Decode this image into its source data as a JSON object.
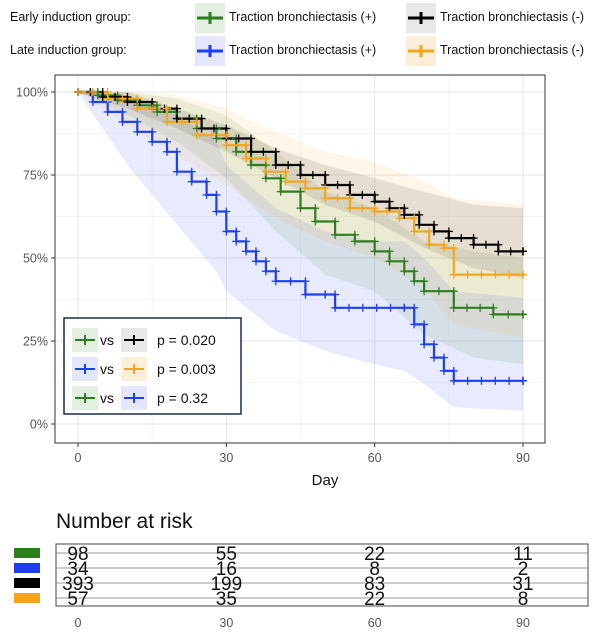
{
  "legend": {
    "early_label": "Early induction group:",
    "late_label": "Late induction group:",
    "tb_pos": "Traction bronchiectasis (+)",
    "tb_neg": "Traction bronchiectasis (-)"
  },
  "pvalues": {
    "vs": "vs",
    "rows": [
      {
        "a": "early_pos",
        "b": "early_neg",
        "p": "p = 0.020"
      },
      {
        "a": "late_pos",
        "b": "late_neg",
        "p": "p = 0.003"
      },
      {
        "a": "early_pos",
        "b": "late_pos",
        "p": "p = 0.32"
      }
    ]
  },
  "risk_table": {
    "title": "Number at risk",
    "times": [
      "0",
      "30",
      "60",
      "90"
    ],
    "rows": [
      {
        "series": "early_pos",
        "values": [
          "98",
          "55",
          "22",
          "11"
        ]
      },
      {
        "series": "late_pos",
        "values": [
          "34",
          "16",
          "8",
          "2"
        ]
      },
      {
        "series": "early_neg",
        "values": [
          "393",
          "199",
          "83",
          "31"
        ]
      },
      {
        "series": "late_neg",
        "values": [
          "57",
          "35",
          "22",
          "8"
        ]
      }
    ]
  },
  "chart_data": {
    "type": "line",
    "xlabel": "Day",
    "ylabel": "",
    "xlim": [
      0,
      90
    ],
    "ylim": [
      0,
      1
    ],
    "x_ticks": [
      0,
      30,
      60,
      90
    ],
    "x_tick_labels": [
      "0",
      "30",
      "60",
      "90"
    ],
    "y_ticks": [
      0,
      0.25,
      0.5,
      0.75,
      1.0
    ],
    "y_tick_labels": [
      "0%",
      "25%",
      "50%",
      "75%",
      "100%"
    ],
    "grid": true,
    "colors": {
      "early_pos": "#2e7d1f",
      "late_pos": "#1e3ff0",
      "early_neg": "#000000",
      "late_neg": "#f2a51f"
    },
    "series": [
      {
        "key": "early_pos",
        "color": "#2e7d1f",
        "points": [
          [
            0,
            1.0
          ],
          [
            4,
            0.99
          ],
          [
            8,
            0.975
          ],
          [
            12,
            0.96
          ],
          [
            16,
            0.94
          ],
          [
            20,
            0.92
          ],
          [
            24,
            0.89
          ],
          [
            28,
            0.86
          ],
          [
            32,
            0.82
          ],
          [
            35,
            0.78
          ],
          [
            38,
            0.74
          ],
          [
            41,
            0.7
          ],
          [
            45,
            0.65
          ],
          [
            48,
            0.61
          ],
          [
            52,
            0.57
          ],
          [
            56,
            0.55
          ],
          [
            60,
            0.52
          ],
          [
            63,
            0.49
          ],
          [
            66,
            0.46
          ],
          [
            68,
            0.43
          ],
          [
            70,
            0.4
          ],
          [
            76,
            0.35
          ],
          [
            84,
            0.33
          ],
          [
            90,
            0.33
          ]
        ],
        "band": [
          [
            0,
            1.0,
            1.0
          ],
          [
            10,
            1.0,
            0.93
          ],
          [
            20,
            0.98,
            0.85
          ],
          [
            30,
            0.93,
            0.74
          ],
          [
            40,
            0.82,
            0.58
          ],
          [
            50,
            0.7,
            0.45
          ],
          [
            60,
            0.65,
            0.4
          ],
          [
            70,
            0.55,
            0.27
          ],
          [
            80,
            0.52,
            0.2
          ],
          [
            90,
            0.5,
            0.18
          ]
        ]
      },
      {
        "key": "late_pos",
        "color": "#1e3ff0",
        "points": [
          [
            0,
            1.0
          ],
          [
            3,
            0.97
          ],
          [
            6,
            0.94
          ],
          [
            9,
            0.91
          ],
          [
            12,
            0.88
          ],
          [
            15,
            0.85
          ],
          [
            18,
            0.82
          ],
          [
            20,
            0.76
          ],
          [
            23,
            0.73
          ],
          [
            26,
            0.69
          ],
          [
            28,
            0.64
          ],
          [
            30,
            0.58
          ],
          [
            32,
            0.55
          ],
          [
            34,
            0.52
          ],
          [
            36,
            0.49
          ],
          [
            38,
            0.46
          ],
          [
            40,
            0.43
          ],
          [
            46,
            0.39
          ],
          [
            50,
            0.39
          ],
          [
            52,
            0.35
          ],
          [
            66,
            0.35
          ],
          [
            68,
            0.3
          ],
          [
            70,
            0.24
          ],
          [
            72,
            0.2
          ],
          [
            74,
            0.16
          ],
          [
            76,
            0.13
          ],
          [
            90,
            0.13
          ]
        ],
        "band": [
          [
            0,
            1.0,
            1.0
          ],
          [
            10,
            0.99,
            0.78
          ],
          [
            20,
            0.93,
            0.6
          ],
          [
            28,
            0.85,
            0.46
          ],
          [
            30,
            0.78,
            0.4
          ],
          [
            40,
            0.65,
            0.28
          ],
          [
            50,
            0.58,
            0.22
          ],
          [
            60,
            0.55,
            0.18
          ],
          [
            66,
            0.55,
            0.16
          ],
          [
            70,
            0.5,
            0.12
          ],
          [
            76,
            0.4,
            0.05
          ],
          [
            90,
            0.38,
            0.04
          ]
        ]
      },
      {
        "key": "early_neg",
        "color": "#000000",
        "points": [
          [
            0,
            1.0
          ],
          [
            5,
            0.985
          ],
          [
            10,
            0.97
          ],
          [
            15,
            0.95
          ],
          [
            20,
            0.92
          ],
          [
            25,
            0.89
          ],
          [
            30,
            0.86
          ],
          [
            35,
            0.82
          ],
          [
            40,
            0.78
          ],
          [
            45,
            0.75
          ],
          [
            50,
            0.72
          ],
          [
            55,
            0.69
          ],
          [
            60,
            0.67
          ],
          [
            63,
            0.65
          ],
          [
            66,
            0.63
          ],
          [
            69,
            0.6
          ],
          [
            72,
            0.58
          ],
          [
            75,
            0.56
          ],
          [
            80,
            0.54
          ],
          [
            85,
            0.52
          ],
          [
            90,
            0.52
          ]
        ],
        "band": [
          [
            0,
            1.0,
            1.0
          ],
          [
            10,
            1.0,
            0.95
          ],
          [
            20,
            0.95,
            0.89
          ],
          [
            30,
            0.9,
            0.82
          ],
          [
            40,
            0.83,
            0.74
          ],
          [
            50,
            0.78,
            0.66
          ],
          [
            60,
            0.74,
            0.61
          ],
          [
            70,
            0.7,
            0.53
          ],
          [
            80,
            0.66,
            0.47
          ],
          [
            90,
            0.65,
            0.44
          ]
        ]
      },
      {
        "key": "late_neg",
        "color": "#f2a51f",
        "points": [
          [
            0,
            1.0
          ],
          [
            6,
            0.98
          ],
          [
            12,
            0.95
          ],
          [
            18,
            0.91
          ],
          [
            24,
            0.87
          ],
          [
            30,
            0.84
          ],
          [
            34,
            0.8
          ],
          [
            38,
            0.76
          ],
          [
            42,
            0.73
          ],
          [
            46,
            0.71
          ],
          [
            50,
            0.68
          ],
          [
            55,
            0.65
          ],
          [
            60,
            0.64
          ],
          [
            65,
            0.62
          ],
          [
            68,
            0.58
          ],
          [
            71,
            0.54
          ],
          [
            74,
            0.53
          ],
          [
            76,
            0.45
          ],
          [
            90,
            0.45
          ]
        ],
        "band": [
          [
            0,
            1.0,
            1.0
          ],
          [
            10,
            1.0,
            0.9
          ],
          [
            20,
            0.99,
            0.81
          ],
          [
            30,
            0.95,
            0.72
          ],
          [
            40,
            0.88,
            0.62
          ],
          [
            50,
            0.82,
            0.55
          ],
          [
            60,
            0.79,
            0.5
          ],
          [
            70,
            0.73,
            0.41
          ],
          [
            76,
            0.68,
            0.3
          ],
          [
            90,
            0.66,
            0.26
          ]
        ]
      }
    ]
  }
}
